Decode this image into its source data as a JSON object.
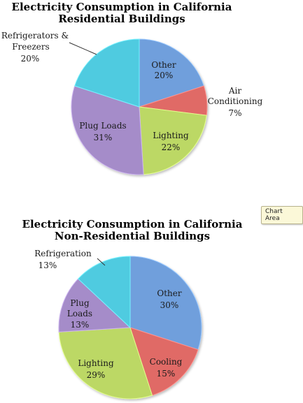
{
  "chart_data": [
    {
      "type": "pie",
      "title": "Electricity Consumption in California",
      "subtitle": "Residential Buildings",
      "slices": [
        {
          "label": "Other",
          "value": 20,
          "pct": "20%",
          "color": "#6f9fdc"
        },
        {
          "label": "Air Conditioning",
          "value": 7,
          "pct": "7%",
          "color": "#e06a66"
        },
        {
          "label": "Lighting",
          "value": 22,
          "pct": "22%",
          "color": "#bcd865"
        },
        {
          "label": "Plug Loads",
          "value": 31,
          "pct": "31%",
          "color": "#a58cc9"
        },
        {
          "label": "Refrigerators & Freezers",
          "value": 20,
          "pct": "20%",
          "color": "#4fcbe0"
        }
      ]
    },
    {
      "type": "pie",
      "title": "Electricity Consumption in California",
      "subtitle": "Non-Residential Buildings",
      "slices": [
        {
          "label": "Other",
          "value": 30,
          "pct": "30%",
          "color": "#6f9fdc"
        },
        {
          "label": "Cooling",
          "value": 15,
          "pct": "15%",
          "color": "#e06a66"
        },
        {
          "label": "Lighting",
          "value": 29,
          "pct": "29%",
          "color": "#bcd865"
        },
        {
          "label": "Plug Loads",
          "value": 13,
          "pct": "13%",
          "color": "#a58cc9"
        },
        {
          "label": "Refrigeration",
          "value": 13,
          "pct": "13%",
          "color": "#4fcbe0"
        }
      ]
    }
  ],
  "tooltip": {
    "text": "Chart Area"
  }
}
